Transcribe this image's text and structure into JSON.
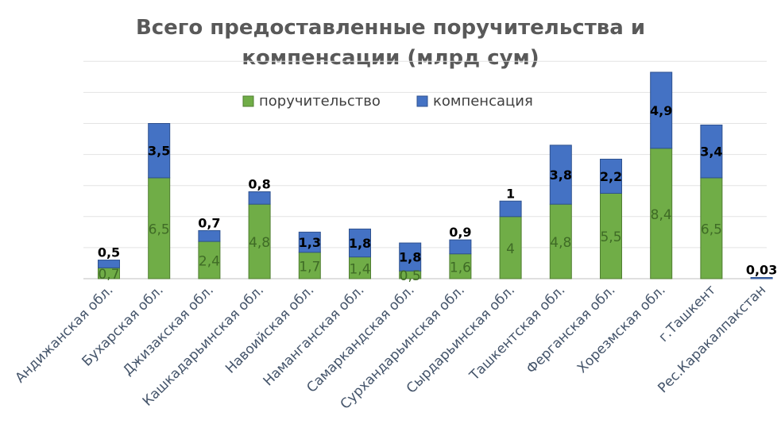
{
  "chart_data": {
    "type": "bar",
    "stacked": true,
    "title_line1": "Всего предоставленные поручительства и",
    "title_line2": "компенсации (млрд сум)",
    "legend_position": "top",
    "grid": true,
    "categories": [
      "Андижанская обл.",
      "Бухарская обл.",
      "Джизакская обл.",
      "Кашкадарьинская обл.",
      "Навоийская обл.",
      "Наманганская обл.",
      "Самаркандская обл.",
      "Сурхандарьинская обл.",
      "Сырдарьинская обл.",
      "Ташкентская обл.",
      "Ферганская обл.",
      "Хорезмская обл.",
      "г.Ташкент",
      "Рес.Каракалпакстан"
    ],
    "series": [
      {
        "name": "поручительство",
        "color": "#70ad47",
        "border": "#507e32",
        "label_color": "#3f6b26",
        "values": [
          0.7,
          6.5,
          2.4,
          4.8,
          1.7,
          1.4,
          0.5,
          1.6,
          4,
          4.8,
          5.5,
          8.4,
          6.5,
          0
        ],
        "labels": [
          "0,7",
          "6,5",
          "2,4",
          "4,8",
          "1,7",
          "1,4",
          "0,5",
          "1,6",
          "4",
          "4,8",
          "5,5",
          "8,4",
          "6,5",
          ""
        ]
      },
      {
        "name": "компенсация",
        "color": "#4472c4",
        "border": "#2f528f",
        "label_color": "#000000",
        "values": [
          0.5,
          3.5,
          0.7,
          0.8,
          1.3,
          1.8,
          1.8,
          0.9,
          1,
          3.8,
          2.2,
          4.9,
          3.4,
          0.03
        ],
        "labels": [
          "0,5",
          "3,5",
          "0,7",
          "0,8",
          "1,3",
          "1,8",
          "1,8",
          "0,9",
          "1",
          "3,8",
          "2,2",
          "4,9",
          "3,4",
          "0,03"
        ]
      }
    ]
  }
}
